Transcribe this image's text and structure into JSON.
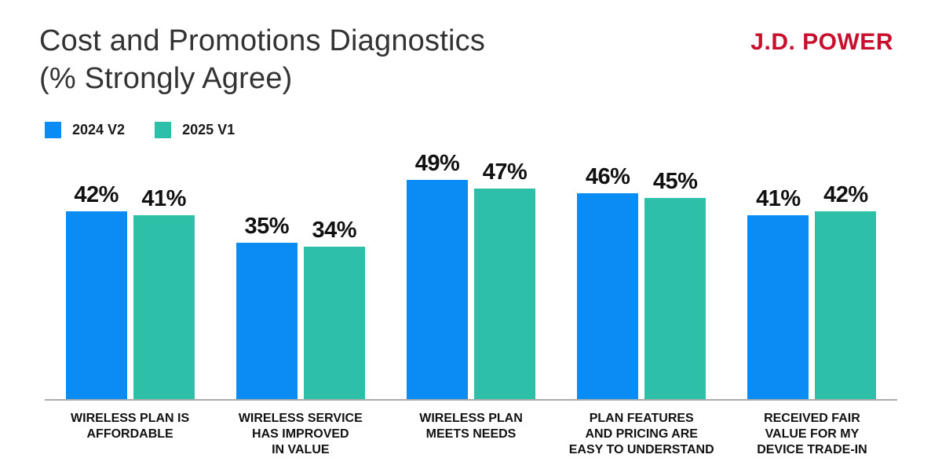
{
  "header": {
    "title_line1": "Cost and Promotions Diagnostics",
    "title_line2": "(% Strongly Agree)",
    "logo": "J.D. POWER"
  },
  "legend": [
    {
      "label": "2024 V2",
      "color": "#0B8BF4"
    },
    {
      "label": "2025 V1",
      "color": "#2DBFA7"
    }
  ],
  "chart_data": {
    "type": "bar",
    "title": "Cost and Promotions Diagnostics (% Strongly Agree)",
    "categories": [
      [
        "WIRELESS PLAN IS",
        "AFFORDABLE"
      ],
      [
        "WIRELESS SERVICE",
        "HAS IMPROVED",
        "IN VALUE"
      ],
      [
        "WIRELESS PLAN",
        "MEETS NEEDS"
      ],
      [
        "PLAN FEATURES",
        "AND PRICING ARE",
        "EASY TO UNDERSTAND"
      ],
      [
        "RECEIVED FAIR",
        "VALUE FOR MY",
        "DEVICE TRADE-IN"
      ]
    ],
    "series": [
      {
        "name": "2024 V2",
        "color": "#0B8BF4",
        "values": [
          42,
          35,
          49,
          46,
          41
        ]
      },
      {
        "name": "2025 V1",
        "color": "#2DBFA7",
        "values": [
          41,
          34,
          47,
          45,
          42
        ]
      }
    ],
    "value_suffix": "%",
    "data_labels": true,
    "grid": false,
    "legend_position": "top-left",
    "xlabel": "",
    "ylabel": "",
    "ylim": [
      0,
      56
    ]
  },
  "colors": {
    "logo_red": "#C8102E",
    "title_text": "#333333",
    "label_text": "#111111",
    "axis_line": "#ABABAB"
  }
}
